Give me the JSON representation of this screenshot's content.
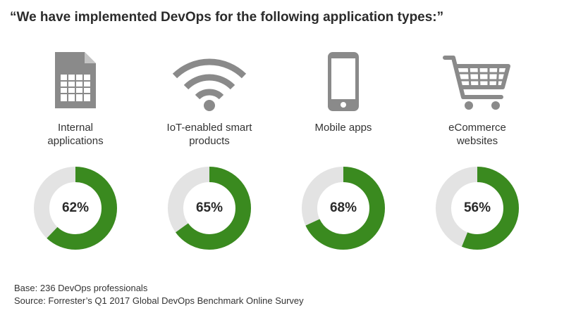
{
  "title": "“We have implemented DevOps for the following application types:”",
  "colors": {
    "filled": "#3a8a1f",
    "remaining": "#e3e3e3",
    "icon": "#8a8a8a"
  },
  "chart_data": {
    "type": "pie",
    "subtype": "donut",
    "title": "“We have implemented DevOps for the following application types:”",
    "categories": [
      "Internal applications",
      "IoT-enabled smart products",
      "Mobile apps",
      "eCommerce websites"
    ],
    "values": [
      62,
      65,
      68,
      56
    ],
    "unit": "%",
    "items": [
      {
        "label_lines": [
          "Internal",
          "applications"
        ],
        "value": 62,
        "display": "62%",
        "icon": "spreadsheet-document-icon"
      },
      {
        "label_lines": [
          "IoT-enabled smart",
          "products"
        ],
        "value": 65,
        "display": "65%",
        "icon": "wifi-signal-icon"
      },
      {
        "label_lines": [
          "Mobile apps"
        ],
        "value": 68,
        "display": "68%",
        "icon": "smartphone-icon"
      },
      {
        "label_lines": [
          "eCommerce",
          "websites"
        ],
        "value": 56,
        "display": "56%",
        "icon": "shopping-cart-icon"
      }
    ]
  },
  "footnotes": {
    "base": "Base: 236 DevOps professionals",
    "source": "Source: Forrester’s Q1 2017 Global DevOps Benchmark Online Survey"
  }
}
